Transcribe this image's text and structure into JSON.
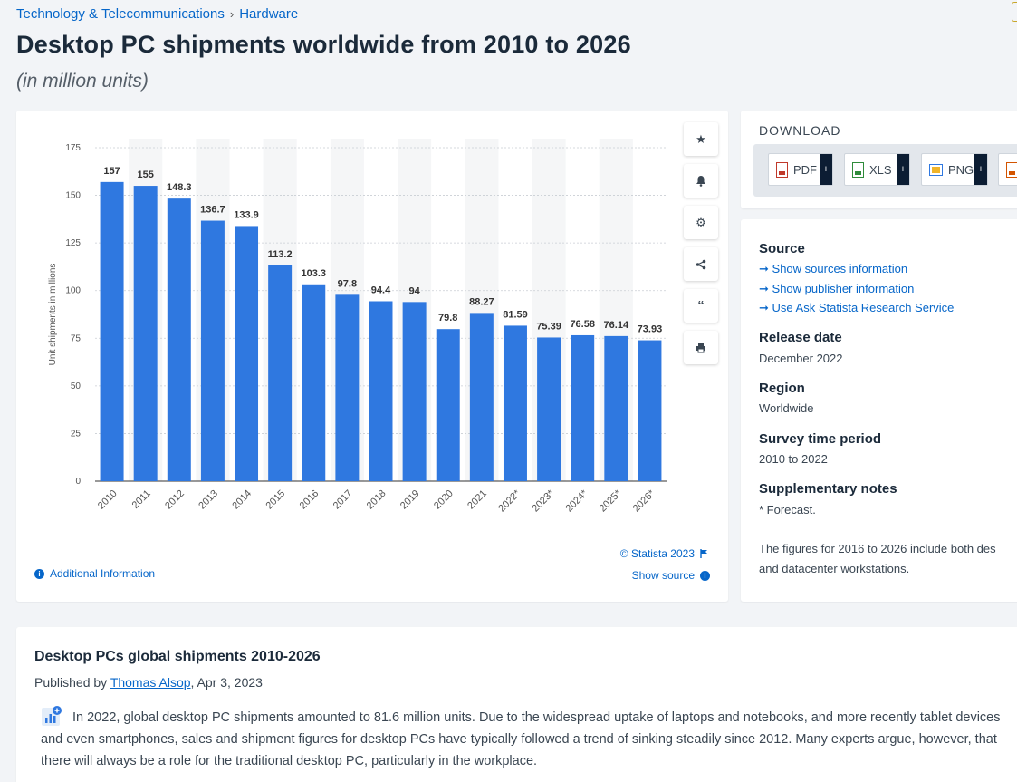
{
  "breadcrumb": {
    "category": "Technology & Telecommunications",
    "subcategory": "Hardware"
  },
  "header": {
    "title": "Desktop PC shipments worldwide from 2010 to 2026",
    "subtitle": "(in million units)"
  },
  "chart_data": {
    "type": "bar",
    "categories": [
      "2010",
      "2011",
      "2012",
      "2013",
      "2014",
      "2015",
      "2016",
      "2017",
      "2018",
      "2019",
      "2020",
      "2021",
      "2022*",
      "2023*",
      "2024*",
      "2025*",
      "2026*"
    ],
    "values": [
      157,
      155,
      148.3,
      136.7,
      133.9,
      113.2,
      103.3,
      97.8,
      94.4,
      94,
      79.8,
      88.27,
      81.59,
      75.39,
      76.58,
      76.14,
      73.93
    ],
    "value_labels": [
      "157",
      "155",
      "148.3",
      "136.7",
      "133.9",
      "113.2",
      "103.3",
      "97.8",
      "94.4",
      "94",
      "79.8",
      "88.27",
      "81.59",
      "75.39",
      "76.58",
      "76.14",
      "73.93"
    ],
    "ylabel": "Unit shipments in millions",
    "ylim": [
      0,
      175
    ],
    "yticks": [
      "0",
      "25",
      "50",
      "75",
      "100",
      "125",
      "150",
      "175"
    ],
    "bar_color": "#2f78e0",
    "grid": true
  },
  "chart_footer": {
    "copyright": "© Statista 2023",
    "show_source": "Show source",
    "additional_info": "Additional Information"
  },
  "download": {
    "title": "DOWNLOAD",
    "buttons": [
      "PDF",
      "XLS",
      "PNG"
    ],
    "plus": "+"
  },
  "info": {
    "source_heading": "Source",
    "source_links": [
      "Show sources information",
      "Show publisher information",
      "Use Ask Statista Research Service"
    ],
    "release_heading": "Release date",
    "release_value": "December 2022",
    "region_heading": "Region",
    "region_value": "Worldwide",
    "survey_heading": "Survey time period",
    "survey_value": "2010 to 2022",
    "notes_heading": "Supplementary notes",
    "notes_value": "* Forecast.",
    "notes_text_1": "The figures for 2016 to 2026 include both des",
    "notes_text_2": "and datacenter workstations."
  },
  "description": {
    "title": "Desktop PCs global shipments 2010-2026",
    "published_by": "Published by",
    "author": "Thomas Alsop",
    "date": ", Apr 3, 2023",
    "body": "In 2022, global desktop PC shipments amounted to 81.6 million units. Due to the widespread uptake of laptops and notebooks, and more recently tablet devices and even smartphones, sales and shipment figures for desktop PCs have typically followed a trend of sinking steadily since 2012. Many experts argue, however, that there will always be a role for the traditional desktop PC, particularly in the workplace."
  }
}
